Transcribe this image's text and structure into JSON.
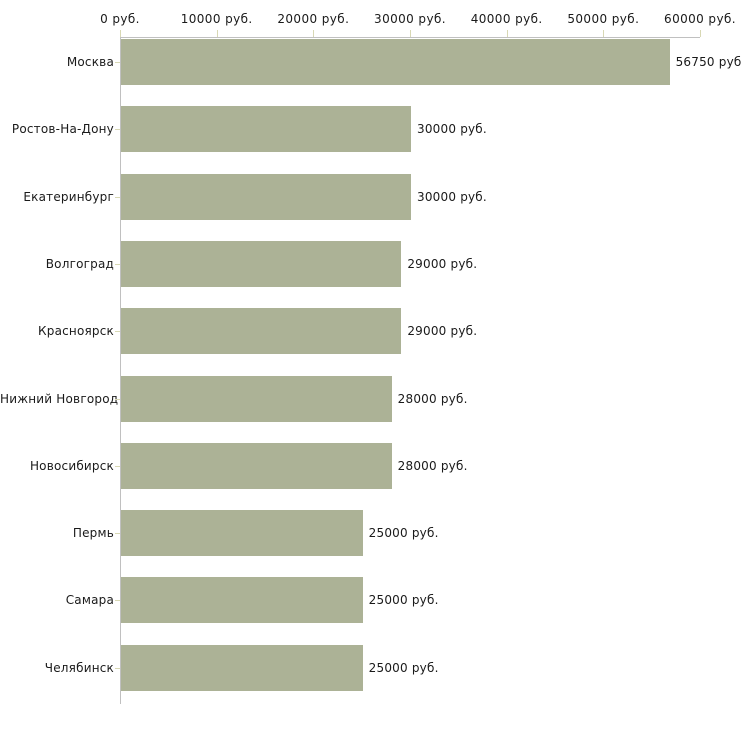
{
  "chart_data": {
    "type": "bar",
    "orientation": "horizontal",
    "title": "",
    "categories": [
      "Москва",
      "Ростов-На-Дону",
      "Екатеринбург",
      "Волгоград",
      "Красноярск",
      "Нижний Новгород",
      "Новосибирск",
      "Пермь",
      "Самара",
      "Челябинск"
    ],
    "values": [
      56750,
      30000,
      30000,
      29000,
      29000,
      28000,
      28000,
      25000,
      25000,
      25000
    ],
    "value_labels": [
      "56750 руб",
      "30000 руб.",
      "30000 руб.",
      "29000 руб.",
      "29000 руб.",
      "28000 руб.",
      "28000 руб.",
      "25000 руб.",
      "25000 руб.",
      "25000 руб."
    ],
    "unit": "руб.",
    "x_axis": {
      "position": "top",
      "range": [
        0,
        60000
      ],
      "ticks": [
        0,
        10000,
        20000,
        30000,
        40000,
        50000,
        60000
      ],
      "tick_labels": [
        "0 руб.",
        "10000 руб.",
        "20000 руб.",
        "30000 руб.",
        "40000 руб.",
        "50000 руб.",
        "60000 руб."
      ]
    },
    "grid": false,
    "legend": false,
    "colors": {
      "background": "#ffffff",
      "bar": "#acb296",
      "axis_line": "#c0c0c0",
      "tick": "#d8d8b4",
      "text": "#1a1a1a"
    }
  }
}
